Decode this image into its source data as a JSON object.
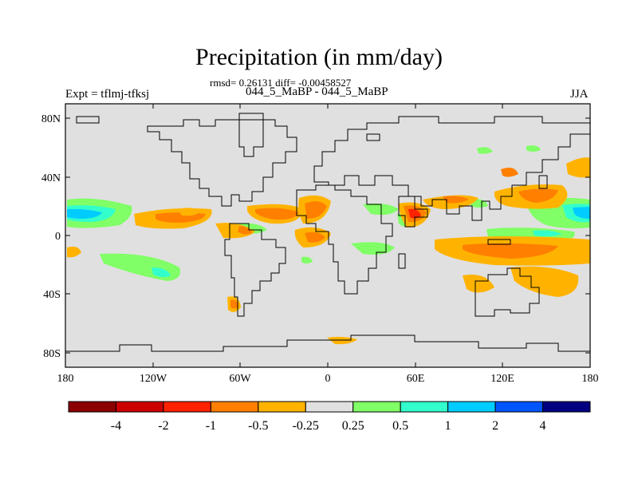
{
  "title": "Precipitation (in mm/day)",
  "stats_line": "rmsd= 0.26131 diff= -0.00458527",
  "subtitle_left": "Expt = tflmj-tfksj",
  "subtitle_center": "044_5_MaBP - 044_5_MaBP",
  "subtitle_right": "JJA",
  "lat_ticks": [
    "80N",
    "40N",
    "0",
    "40S",
    "80S"
  ],
  "lon_ticks": [
    "180",
    "120W",
    "60W",
    "0",
    "60E",
    "120E",
    "180"
  ],
  "colorbar": {
    "colors": [
      "#8b0000",
      "#cc0000",
      "#ff2200",
      "#ff7f00",
      "#ffb300",
      "#e0e0e0",
      "#80ff66",
      "#33ffcc",
      "#00ccff",
      "#0055ff",
      "#000080"
    ],
    "labels": [
      "-4",
      "-2",
      "-1",
      "-0.5",
      "-0.25",
      "0.25",
      "0.5",
      "1",
      "2",
      "4"
    ]
  },
  "palette": {
    "background": "#e0e0e0",
    "wet_light": "#80ff66",
    "wet_mid": "#33ffcc",
    "wet_strong": "#00ccff",
    "dry_light": "#ffb300",
    "dry_mid": "#ff7f00",
    "dry_strong": "#ff2200",
    "dry_extreme": "#cc0000"
  }
}
